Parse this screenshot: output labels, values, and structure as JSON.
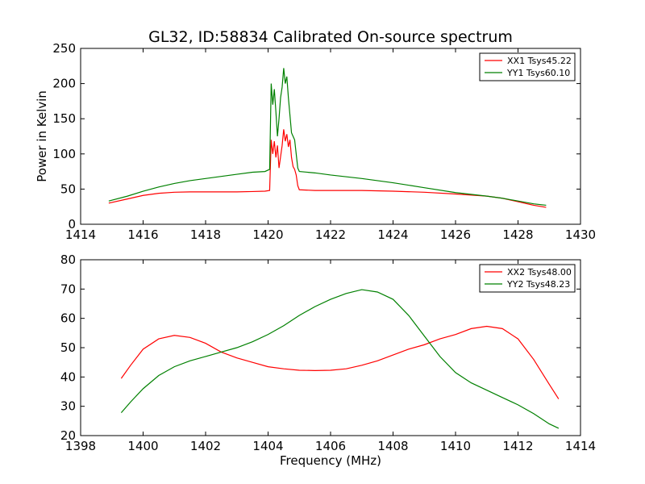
{
  "figure_title": "GL32, ID:58834 Calibrated On-source spectrum",
  "xlabel": "Frequency (MHz)",
  "chart_data": [
    {
      "type": "line",
      "ylabel": "Power in Kelvin",
      "xlim": [
        1414,
        1430
      ],
      "ylim": [
        0,
        250
      ],
      "xticks": [
        "1414",
        "1416",
        "1418",
        "1420",
        "1422",
        "1424",
        "1426",
        "1428",
        "1430"
      ],
      "yticks": [
        "0",
        "50",
        "100",
        "150",
        "200",
        "250"
      ],
      "legend_position": "top-right",
      "series": [
        {
          "name": "XX1 Tsys45.22",
          "color": "#ff0000",
          "points": [
            [
              1414.9,
              30
            ],
            [
              1415.5,
              36
            ],
            [
              1416.0,
              41
            ],
            [
              1416.5,
              44
            ],
            [
              1417.0,
              45.5
            ],
            [
              1417.5,
              46
            ],
            [
              1418.0,
              46
            ],
            [
              1419.0,
              46
            ],
            [
              1419.5,
              46.5
            ],
            [
              1419.9,
              47
            ],
            [
              1420.05,
              48
            ],
            [
              1420.1,
              120
            ],
            [
              1420.15,
              100
            ],
            [
              1420.2,
              118
            ],
            [
              1420.25,
              95
            ],
            [
              1420.3,
              112
            ],
            [
              1420.35,
              80
            ],
            [
              1420.4,
              96
            ],
            [
              1420.45,
              112
            ],
            [
              1420.5,
              135
            ],
            [
              1420.55,
              118
            ],
            [
              1420.6,
              128
            ],
            [
              1420.65,
              110
            ],
            [
              1420.7,
              120
            ],
            [
              1420.75,
              95
            ],
            [
              1420.8,
              82
            ],
            [
              1420.85,
              78
            ],
            [
              1420.9,
              70
            ],
            [
              1420.95,
              55
            ],
            [
              1421.0,
              49
            ],
            [
              1421.5,
              48
            ],
            [
              1422.0,
              48
            ],
            [
              1423.0,
              48
            ],
            [
              1424.0,
              47
            ],
            [
              1425.0,
              45.5
            ],
            [
              1426.0,
              43
            ],
            [
              1427.0,
              40
            ],
            [
              1427.5,
              37
            ],
            [
              1428.0,
              32
            ],
            [
              1428.5,
              27
            ],
            [
              1428.9,
              24
            ]
          ]
        },
        {
          "name": "YY1 Tsys60.10",
          "color": "#008000",
          "points": [
            [
              1414.9,
              33
            ],
            [
              1415.5,
              40
            ],
            [
              1416.0,
              47
            ],
            [
              1416.5,
              53
            ],
            [
              1417.0,
              58
            ],
            [
              1417.5,
              62
            ],
            [
              1418.0,
              65
            ],
            [
              1418.5,
              68
            ],
            [
              1419.0,
              71
            ],
            [
              1419.5,
              74
            ],
            [
              1419.9,
              75
            ],
            [
              1420.05,
              78
            ],
            [
              1420.1,
              200
            ],
            [
              1420.15,
              170
            ],
            [
              1420.2,
              192
            ],
            [
              1420.25,
              160
            ],
            [
              1420.3,
              125
            ],
            [
              1420.35,
              150
            ],
            [
              1420.4,
              180
            ],
            [
              1420.45,
              195
            ],
            [
              1420.5,
              222
            ],
            [
              1420.55,
              200
            ],
            [
              1420.6,
              210
            ],
            [
              1420.65,
              180
            ],
            [
              1420.7,
              155
            ],
            [
              1420.75,
              130
            ],
            [
              1420.8,
              125
            ],
            [
              1420.85,
              120
            ],
            [
              1420.9,
              100
            ],
            [
              1420.95,
              80
            ],
            [
              1421.0,
              75
            ],
            [
              1421.5,
              73
            ],
            [
              1422.0,
              70
            ],
            [
              1423.0,
              65
            ],
            [
              1424.0,
              59
            ],
            [
              1425.0,
              52
            ],
            [
              1426.0,
              45
            ],
            [
              1427.0,
              40
            ],
            [
              1427.5,
              37
            ],
            [
              1428.0,
              33
            ],
            [
              1428.5,
              29
            ],
            [
              1428.9,
              27
            ]
          ]
        }
      ]
    },
    {
      "type": "line",
      "ylabel": "",
      "xlim": [
        1398,
        1414
      ],
      "ylim": [
        20,
        80
      ],
      "xticks": [
        "1398",
        "1400",
        "1402",
        "1404",
        "1406",
        "1408",
        "1410",
        "1412",
        "1414"
      ],
      "yticks": [
        "20",
        "30",
        "40",
        "50",
        "60",
        "70",
        "80"
      ],
      "legend_position": "top-right",
      "series": [
        {
          "name": "XX2 Tsys48.00",
          "color": "#ff0000",
          "points": [
            [
              1399.3,
              39.5
            ],
            [
              1399.6,
              44
            ],
            [
              1400.0,
              49.5
            ],
            [
              1400.5,
              53
            ],
            [
              1401.0,
              54.2
            ],
            [
              1401.5,
              53.5
            ],
            [
              1402.0,
              51.5
            ],
            [
              1402.5,
              48.5
            ],
            [
              1403.0,
              46.5
            ],
            [
              1403.5,
              45
            ],
            [
              1404.0,
              43.5
            ],
            [
              1404.5,
              42.8
            ],
            [
              1405.0,
              42.3
            ],
            [
              1405.5,
              42.2
            ],
            [
              1406.0,
              42.3
            ],
            [
              1406.5,
              42.8
            ],
            [
              1407.0,
              44
            ],
            [
              1407.5,
              45.5
            ],
            [
              1408.0,
              47.5
            ],
            [
              1408.5,
              49.5
            ],
            [
              1409.0,
              51
            ],
            [
              1409.5,
              53
            ],
            [
              1410.0,
              54.5
            ],
            [
              1410.5,
              56.5
            ],
            [
              1411.0,
              57.3
            ],
            [
              1411.5,
              56.5
            ],
            [
              1412.0,
              53
            ],
            [
              1412.5,
              46
            ],
            [
              1413.0,
              37.5
            ],
            [
              1413.3,
              32.5
            ]
          ]
        },
        {
          "name": "YY2 Tsys48.23",
          "color": "#008000",
          "points": [
            [
              1399.3,
              27.8
            ],
            [
              1399.6,
              31.5
            ],
            [
              1400.0,
              36
            ],
            [
              1400.5,
              40.5
            ],
            [
              1401.0,
              43.5
            ],
            [
              1401.5,
              45.5
            ],
            [
              1402.0,
              47
            ],
            [
              1402.5,
              48.5
            ],
            [
              1403.0,
              50
            ],
            [
              1403.5,
              52
            ],
            [
              1404.0,
              54.5
            ],
            [
              1404.5,
              57.5
            ],
            [
              1405.0,
              61
            ],
            [
              1405.5,
              64
            ],
            [
              1406.0,
              66.5
            ],
            [
              1406.5,
              68.5
            ],
            [
              1407.0,
              69.8
            ],
            [
              1407.5,
              69
            ],
            [
              1408.0,
              66.5
            ],
            [
              1408.5,
              61
            ],
            [
              1409.0,
              54
            ],
            [
              1409.5,
              47
            ],
            [
              1410.0,
              41.5
            ],
            [
              1410.5,
              38
            ],
            [
              1411.0,
              35.5
            ],
            [
              1411.5,
              33
            ],
            [
              1412.0,
              30.5
            ],
            [
              1412.5,
              27.5
            ],
            [
              1413.0,
              24
            ],
            [
              1413.3,
              22.5
            ]
          ]
        }
      ]
    }
  ]
}
